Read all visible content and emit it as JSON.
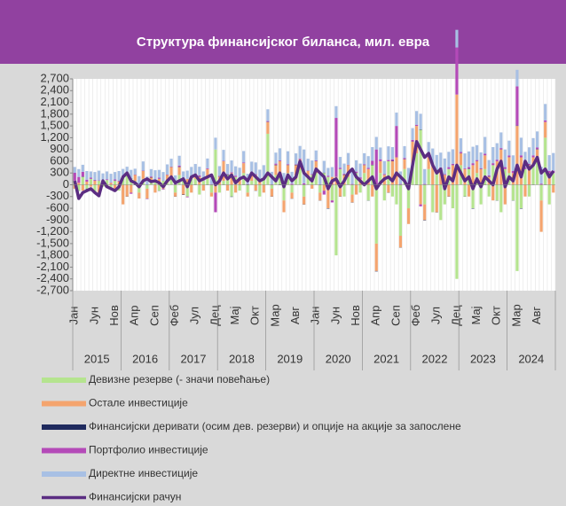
{
  "chart_data": {
    "type": "bar",
    "title": "Структура финансијског биланса, мил. евра",
    "categories": [
      "Јан",
      null,
      null,
      null,
      null,
      "Јун",
      null,
      null,
      null,
      null,
      "Нов",
      null,
      null,
      null,
      null,
      "Апр",
      null,
      null,
      null,
      null,
      "Сеп",
      null,
      null,
      null,
      null,
      "Феб",
      null,
      null,
      null,
      null,
      "Јул",
      null,
      null,
      null,
      null,
      "Дец",
      null,
      null,
      null,
      null,
      "Мај",
      null,
      null,
      null,
      null,
      "Окт",
      null,
      null,
      null,
      null,
      "Мар",
      null,
      null,
      null,
      null,
      "Авг",
      null,
      null,
      null,
      null,
      "Јан",
      null,
      null,
      null,
      null,
      "Јун",
      null,
      null,
      null,
      null,
      "Нов",
      null,
      null,
      null,
      null,
      "Апр",
      null,
      null,
      null,
      null,
      "Сеп",
      null,
      null,
      null,
      null,
      "Феб",
      null,
      null,
      null,
      null,
      "Јул",
      null,
      null,
      null,
      null,
      "Дец",
      null,
      null,
      null,
      null,
      "Мај",
      null,
      null,
      null,
      null,
      "Окт",
      null,
      null,
      null,
      null,
      "Мар",
      null,
      null,
      null,
      null,
      "Авг",
      null,
      null,
      null,
      null
    ],
    "year_groups": [
      2015,
      2016,
      2017,
      2018,
      2019,
      2020,
      2021,
      2022,
      2023,
      2024
    ],
    "ylim": [
      -2700,
      2700
    ],
    "yticks": [
      {
        "value": 2700,
        "label": "2,700"
      },
      {
        "value": 2400,
        "label": "2,400"
      },
      {
        "value": 2100,
        "label": "2,100"
      },
      {
        "value": 1800,
        "label": "1,800"
      },
      {
        "value": 1500,
        "label": "1,500"
      },
      {
        "value": 1200,
        "label": "1,200"
      },
      900,
      600,
      300,
      0,
      -300,
      -600,
      -900,
      {
        "value": -1200,
        "label": "-1,200"
      },
      {
        "value": -1500,
        "label": "-1,500"
      },
      {
        "value": -1800,
        "label": "-1,800"
      },
      {
        "value": -2100,
        "label": "-2,100"
      },
      {
        "value": -2400,
        "label": "-2,400"
      },
      {
        "value": -2700,
        "label": "-2,700"
      }
    ],
    "series": [
      {
        "name": "Девизне резерве (- значи повећање)",
        "color": "#b5e48f",
        "type": "bar",
        "values": [
          100,
          -150,
          200,
          -100,
          150,
          -200,
          100,
          -50,
          120,
          -80,
          100,
          -150,
          200,
          250,
          150,
          100,
          -200,
          150,
          -100,
          80,
          120,
          -150,
          100,
          50,
          150,
          -200,
          250,
          100,
          -300,
          200,
          150,
          -250,
          100,
          150,
          -200,
          900,
          -200,
          100,
          250,
          -300,
          200,
          -150,
          300,
          -200,
          100,
          250,
          -300,
          150,
          1300,
          -100,
          250,
          200,
          -400,
          300,
          -200,
          150,
          400,
          -300,
          200,
          250,
          300,
          -200,
          300,
          200,
          -400,
          -1800,
          400,
          -300,
          200,
          -250,
          300,
          -200,
          300,
          -400,
          500,
          -1500,
          300,
          -400,
          600,
          -300,
          -500,
          -1300,
          400,
          -600,
          500,
          800,
          1400,
          -500,
          400,
          -700,
          300,
          -900,
          -500,
          400,
          -600,
          -2400,
          500,
          -300,
          400,
          -600,
          300,
          -500,
          400,
          -300,
          500,
          -400,
          -700,
          400,
          300,
          -400,
          -2200,
          -600,
          400,
          -300,
          500,
          600,
          -400,
          1200,
          -500,
          300
        ]
      },
      {
        "name": "Остале инвестиције",
        "color": "#f4a46e",
        "type": "bar",
        "values": [
          -100,
          50,
          -150,
          80,
          -50,
          100,
          -200,
          60,
          -80,
          50,
          -100,
          80,
          -500,
          -300,
          -200,
          150,
          -150,
          200,
          -250,
          100,
          -200,
          150,
          -100,
          200,
          300,
          -100,
          200,
          -250,
          150,
          -200,
          100,
          200,
          -150,
          250,
          -100,
          -200,
          200,
          500,
          -150,
          300,
          -200,
          150,
          250,
          -100,
          200,
          -150,
          100,
          -200,
          300,
          -200,
          250,
          400,
          -300,
          200,
          -150,
          350,
          250,
          -200,
          150,
          -100,
          300,
          -200,
          -150,
          -600,
          200,
          200,
          -300,
          250,
          300,
          -200,
          -250,
          150,
          200,
          400,
          -300,
          -700,
          300,
          250,
          -200,
          600,
          700,
          -300,
          250,
          -400,
          600,
          700,
          -500,
          -400,
          300,
          500,
          -700,
          400,
          250,
          -300,
          500,
          2300,
          300,
          400,
          -300,
          500,
          300,
          400,
          350,
          200,
          -400,
          600,
          900,
          -500,
          400,
          300,
          1500,
          700,
          -300,
          500,
          200,
          300,
          -800,
          400,
          300,
          -200
        ]
      },
      {
        "name": "Финансијски деривати (осим дев. резерви) и опције на акције за запослене",
        "color": "#1f2a5e",
        "type": "bar",
        "values": [
          5,
          -5,
          10,
          -10,
          0,
          5,
          -5,
          10,
          0,
          -5,
          5,
          0,
          5,
          -5,
          10,
          -10,
          0,
          5,
          -5,
          10,
          0,
          -5,
          5,
          0,
          5,
          -5,
          10,
          -10,
          0,
          5,
          -5,
          10,
          0,
          -5,
          5,
          0,
          5,
          -5,
          10,
          -10,
          0,
          5,
          -5,
          10,
          0,
          -5,
          5,
          0,
          5,
          -5,
          10,
          -10,
          0,
          5,
          -5,
          10,
          0,
          -5,
          5,
          0,
          5,
          -5,
          10,
          -10,
          0,
          5,
          -5,
          10,
          0,
          -5,
          5,
          0,
          5,
          -5,
          10,
          -10,
          0,
          5,
          -5,
          10,
          0,
          -5,
          5,
          0,
          5,
          -5,
          10,
          -10,
          0,
          5,
          -5,
          10,
          0,
          -5,
          5,
          0,
          5,
          -5,
          10,
          -10,
          0,
          5,
          -5,
          10,
          0,
          -5,
          5,
          0,
          5,
          -5,
          10,
          -10,
          0,
          5,
          -5,
          10,
          0,
          -5,
          5,
          0
        ]
      },
      {
        "name": "Портфолио инвестиције",
        "color": "#b44ab8",
        "type": "bar",
        "values": [
          200,
          150,
          120,
          50,
          30,
          20,
          10,
          40,
          20,
          10,
          30,
          20,
          20,
          10,
          -30,
          10,
          20,
          10,
          -10,
          20,
          10,
          30,
          -20,
          10,
          10,
          20,
          30,
          10,
          -20,
          10,
          20,
          30,
          10,
          20,
          10,
          -500,
          20,
          10,
          10,
          20,
          30,
          10,
          20,
          10,
          10,
          20,
          10,
          30,
          20,
          10,
          30,
          20,
          10,
          20,
          30,
          10,
          20,
          40,
          10,
          20,
          20,
          10,
          -100,
          30,
          -50,
          1500,
          30,
          20,
          10,
          20,
          30,
          40,
          20,
          30,
          100,
          900,
          50,
          20,
          30,
          40,
          800,
          20,
          30,
          50,
          40,
          30,
          -50,
          20,
          30,
          20,
          40,
          30,
          20,
          50,
          30,
          1200,
          30,
          20,
          40,
          50,
          30,
          20,
          40,
          30,
          50,
          40,
          30,
          50,
          40,
          50,
          1000,
          50,
          40,
          30,
          50,
          40,
          30,
          40,
          50,
          60
        ]
      },
      {
        "name": "Директне инвестиције",
        "color": "#a8c0e4",
        "type": "bar",
        "values": [
          150,
          200,
          180,
          220,
          160,
          200,
          250,
          180,
          200,
          220,
          190,
          250,
          180,
          200,
          220,
          150,
          200,
          230,
          210,
          190,
          240,
          200,
          220,
          260,
          200,
          220,
          250,
          230,
          210,
          240,
          260,
          220,
          230,
          250,
          240,
          300,
          250,
          280,
          260,
          300,
          240,
          270,
          290,
          260,
          280,
          300,
          270,
          320,
          300,
          320,
          280,
          310,
          290,
          330,
          300,
          280,
          320,
          860,
          300,
          350,
          250,
          280,
          300,
          200,
          250,
          300,
          280,
          260,
          300,
          320,
          290,
          350,
          280,
          300,
          350,
          320,
          300,
          330,
          350,
          310,
          340,
          320,
          300,
          380,
          300,
          350,
          400,
          380,
          360,
          400,
          420,
          380,
          400,
          390,
          370,
          450,
          350,
          380,
          400,
          420,
          380,
          400,
          430,
          390,
          410,
          420,
          400,
          450,
          380,
          400,
          420,
          450,
          400,
          420,
          440,
          410,
          430,
          420,
          400,
          450
        ]
      },
      {
        "name": "Финансијски рачун",
        "color": "#5b2d82",
        "type": "line",
        "values": [
          100,
          -350,
          -200,
          -150,
          -100,
          -200,
          -280,
          100,
          -50,
          -100,
          -150,
          -50,
          200,
          300,
          100,
          50,
          -50,
          100,
          150,
          80,
          100,
          50,
          -50,
          100,
          200,
          50,
          100,
          150,
          -50,
          200,
          250,
          100,
          150,
          200,
          250,
          0,
          100,
          300,
          150,
          250,
          50,
          150,
          200,
          100,
          300,
          200,
          100,
          150,
          300,
          200,
          100,
          300,
          -50,
          250,
          100,
          200,
          600,
          300,
          200,
          100,
          400,
          300,
          200,
          -100,
          100,
          150,
          -50,
          100,
          300,
          400,
          200,
          100,
          0,
          100,
          200,
          -100,
          50,
          150,
          200,
          100,
          300,
          200,
          100,
          -100,
          500,
          1100,
          900,
          700,
          800,
          500,
          300,
          400,
          -100,
          200,
          100,
          500,
          300,
          100,
          200,
          -100,
          150,
          -50,
          200,
          100,
          0,
          400,
          600,
          -50,
          200,
          100,
          500,
          200,
          600,
          400,
          500,
          700,
          300,
          400,
          200,
          350
        ]
      }
    ]
  }
}
